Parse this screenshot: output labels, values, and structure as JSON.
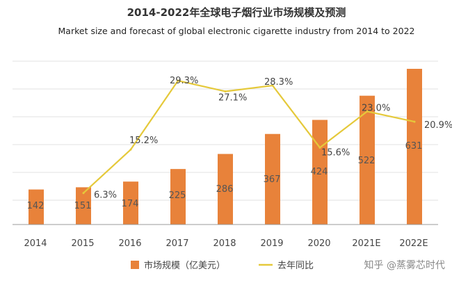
{
  "header": {
    "title_cn": "2014-2022年全球电子烟行业市场规模及预测",
    "title_en": "Market size and forecast of global electronic cigarette industry from 2014 to 2022"
  },
  "watermark": "知乎 @蒸雾芯时代",
  "colors": {
    "bar": "#E8823A",
    "line": "#E5C93A",
    "grid": "#E2E2E2",
    "axis": "#999999"
  },
  "chart_data": {
    "type": "bar",
    "categories": [
      "2014",
      "2015",
      "2016",
      "2017",
      "2018",
      "2019",
      "2020",
      "2021E",
      "2022E"
    ],
    "series": [
      {
        "name": "市场规模（亿美元）",
        "type": "bar",
        "values": [
          142,
          151,
          174,
          225,
          286,
          367,
          424,
          522,
          631
        ],
        "labels": [
          "142",
          "151",
          "174",
          "225",
          "286",
          "367",
          "424",
          "522",
          "631"
        ]
      },
      {
        "name": "去年同比",
        "type": "line",
        "values": [
          null,
          6.3,
          15.2,
          29.3,
          27.1,
          28.3,
          15.6,
          23.0,
          20.9
        ],
        "labels": [
          "",
          "6.3%",
          "15.2%",
          "29.3%",
          "27.1%",
          "28.3%",
          "15.6%",
          "23.0%",
          "20.9%"
        ]
      }
    ],
    "y_bar_range": [
      0,
      700
    ],
    "y_line_range": [
      0,
      35
    ],
    "grid": true,
    "legend_position": "bottom"
  }
}
